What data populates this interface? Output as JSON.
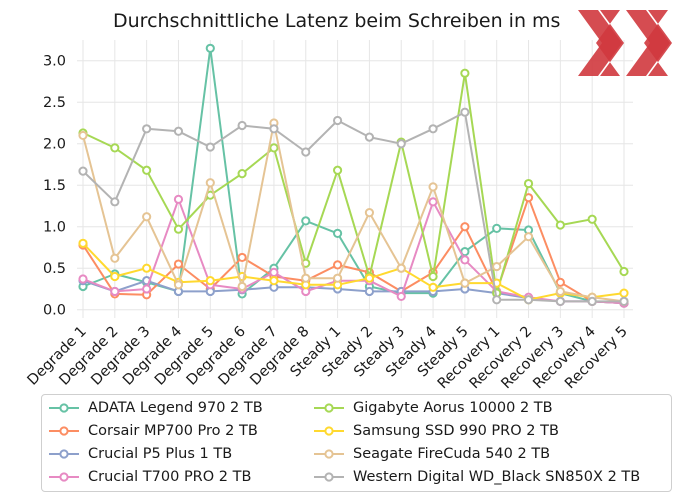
{
  "chart_data": {
    "type": "line",
    "title": "Durchschnittliche Latenz beim Schreiben in ms",
    "categories": [
      "Degrade 1",
      "Degrade 2",
      "Degrade 3",
      "Degrade 4",
      "Degrade 5",
      "Degrade 6",
      "Degrade 7",
      "Degrade 8",
      "Steady 1",
      "Steady 2",
      "Steady 3",
      "Steady 4",
      "Steady 5",
      "Recovery 1",
      "Recovery 2",
      "Recovery 3",
      "Recovery 4",
      "Recovery 5"
    ],
    "ylim": [
      -0.1,
      3.25
    ],
    "yticks": [
      "0.0",
      "0.5",
      "1.0",
      "1.5",
      "2.0",
      "2.5",
      "3.0"
    ],
    "grid": true,
    "legend_position": "bottom",
    "series": [
      {
        "name": "ADATA Legend 970 2 TB",
        "color": "#66c2a5",
        "values": [
          0.28,
          0.43,
          0.33,
          0.22,
          3.15,
          0.19,
          0.5,
          1.07,
          0.92,
          0.28,
          0.2,
          0.2,
          0.7,
          0.98,
          0.96,
          0.2,
          0.1,
          0.08
        ]
      },
      {
        "name": "Corsair MP700 Pro 2 TB",
        "color": "#fc8d62",
        "values": [
          0.78,
          0.19,
          0.18,
          0.55,
          0.25,
          0.63,
          0.4,
          0.35,
          0.54,
          0.45,
          0.22,
          0.45,
          1.0,
          0.22,
          1.35,
          0.33,
          0.1,
          0.08
        ]
      },
      {
        "name": "Crucial P5 Plus 1 TB",
        "color": "#8da0cb",
        "values": [
          0.35,
          0.22,
          0.35,
          0.22,
          0.22,
          0.24,
          0.27,
          0.27,
          0.25,
          0.22,
          0.22,
          0.22,
          0.25,
          0.2,
          0.14,
          0.1,
          0.1,
          0.08
        ]
      },
      {
        "name": "Crucial T700 PRO 2 TB",
        "color": "#e78ac3",
        "values": [
          0.37,
          0.22,
          0.25,
          1.33,
          0.3,
          0.25,
          0.45,
          0.22,
          0.35,
          0.35,
          0.16,
          1.3,
          0.6,
          0.22,
          0.15,
          0.1,
          0.1,
          0.08
        ]
      },
      {
        "name": "Gigabyte Aorus 10000 2 TB",
        "color": "#a6d854",
        "values": [
          2.13,
          1.95,
          1.68,
          0.97,
          1.38,
          1.64,
          1.95,
          0.56,
          1.68,
          0.4,
          2.02,
          0.4,
          2.85,
          0.2,
          1.52,
          1.02,
          1.09,
          0.46
        ]
      },
      {
        "name": "Samsung SSD 990 PRO 2 TB",
        "color": "#ffd92f",
        "values": [
          0.8,
          0.4,
          0.5,
          0.33,
          0.35,
          0.4,
          0.35,
          0.3,
          0.3,
          0.38,
          0.5,
          0.27,
          0.32,
          0.32,
          0.12,
          0.2,
          0.15,
          0.2
        ]
      },
      {
        "name": "Seagate FireCuda 540 2 TB",
        "color": "#e5c494",
        "values": [
          2.1,
          0.62,
          1.12,
          0.3,
          1.53,
          0.28,
          2.25,
          0.38,
          0.38,
          1.17,
          0.5,
          1.48,
          0.32,
          0.52,
          0.88,
          0.22,
          0.15,
          0.1
        ]
      },
      {
        "name": "Western Digital WD_Black SN850X 2 TB",
        "color": "#b3b3b3",
        "values": [
          1.67,
          1.3,
          2.18,
          2.15,
          1.96,
          2.22,
          2.18,
          1.9,
          2.28,
          2.08,
          2.0,
          2.18,
          2.38,
          0.12,
          0.12,
          0.1,
          0.1,
          0.1
        ]
      }
    ]
  }
}
